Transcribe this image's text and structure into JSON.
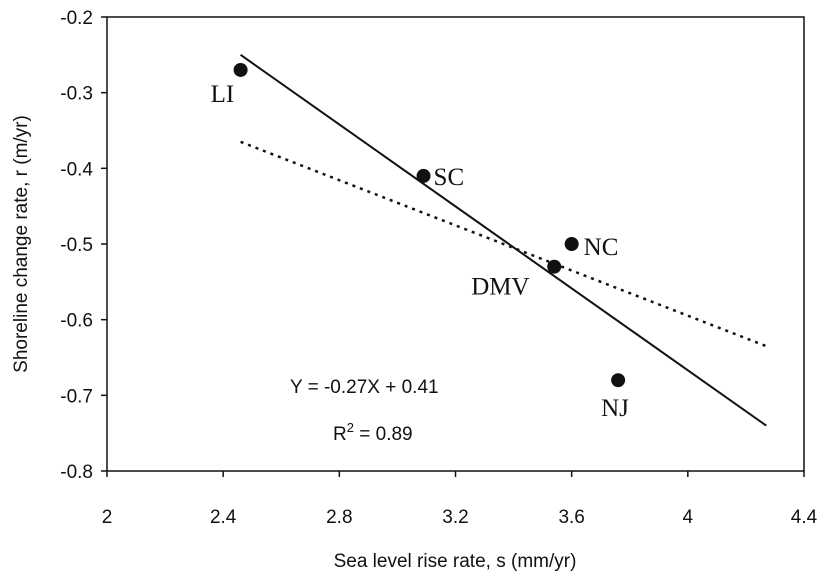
{
  "chart_data": {
    "type": "scatter",
    "xlabel": "Sea level rise rate, s (mm/yr)",
    "ylabel": "Shoreline change rate, r (m/yr)",
    "xlim": [
      2,
      4.4
    ],
    "ylim": [
      -0.8,
      -0.2
    ],
    "xticks": [
      "2",
      "2.4",
      "2.8",
      "3.2",
      "3.6",
      "4",
      "4.4"
    ],
    "yticks": [
      "-0.2",
      "-0.3",
      "-0.4",
      "-0.5",
      "-0.6",
      "-0.7",
      "-0.8"
    ],
    "grid": false,
    "points": [
      {
        "label": "LI",
        "x": 2.46,
        "y": -0.27
      },
      {
        "label": "SC",
        "x": 3.09,
        "y": -0.41
      },
      {
        "label": "NC",
        "x": 3.6,
        "y": -0.5
      },
      {
        "label": "DMV",
        "x": 3.54,
        "y": -0.53
      },
      {
        "label": "NJ",
        "x": 3.76,
        "y": -0.68
      }
    ],
    "fit_line": {
      "style": "solid",
      "x": [
        2.46,
        4.27
      ],
      "y": [
        -0.25,
        -0.74
      ]
    },
    "trend_line": {
      "style": "dotted",
      "x": [
        2.46,
        4.27
      ],
      "y": [
        -0.365,
        -0.635
      ]
    },
    "equation": "Y = -0.27X + 0.41",
    "r2_prefix": "R",
    "r2_sup": "2",
    "r2_suffix": " = 0.89"
  }
}
